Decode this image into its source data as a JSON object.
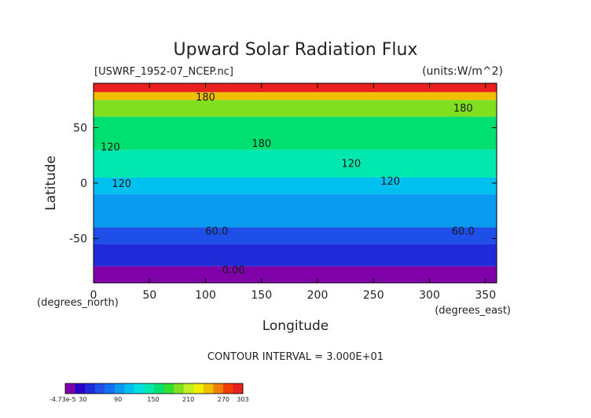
{
  "chart_data": {
    "type": "heatmap",
    "title": "Upward Solar Radiation Flux",
    "file_label": "[USWRF_1952-07_NCEP.nc]",
    "units_label": "(units:W/m^2)",
    "xlabel": "Longitude",
    "ylabel": "Latitude",
    "x_unit_label": "(degrees_east)",
    "y_unit_label": "(degrees_north)",
    "xlim": [
      0,
      360
    ],
    "ylim": [
      -90,
      90
    ],
    "x_ticks": [
      0,
      50,
      100,
      150,
      200,
      250,
      300,
      350
    ],
    "y_ticks": [
      -50,
      0,
      50
    ],
    "contour_interval_label": "CONTOUR INTERVAL = 3.000E+01",
    "contour_labels": [
      {
        "text": "180",
        "lon": 100,
        "lat": 78
      },
      {
        "text": "180",
        "lon": 150,
        "lat": 36
      },
      {
        "text": "180",
        "lon": 330,
        "lat": 68
      },
      {
        "text": "120",
        "lon": 15,
        "lat": 33
      },
      {
        "text": "120",
        "lon": 25,
        "lat": 0
      },
      {
        "text": "120",
        "lon": 230,
        "lat": 18
      },
      {
        "text": "120",
        "lon": 265,
        "lat": 2
      },
      {
        "text": "60.0",
        "lon": 110,
        "lat": -43
      },
      {
        "text": "60.0",
        "lon": 330,
        "lat": -43
      },
      {
        "text": "0.00",
        "lon": 125,
        "lat": -78
      }
    ],
    "latitude_bands": [
      {
        "lat_min": -90,
        "lat_max": -75,
        "value": 0
      },
      {
        "lat_min": -75,
        "lat_max": -55,
        "value": 40
      },
      {
        "lat_min": -55,
        "lat_max": -40,
        "value": 65
      },
      {
        "lat_min": -40,
        "lat_max": -10,
        "value": 100
      },
      {
        "lat_min": -10,
        "lat_max": 5,
        "value": 115
      },
      {
        "lat_min": 5,
        "lat_max": 30,
        "value": 140
      },
      {
        "lat_min": 30,
        "lat_max": 60,
        "value": 160
      },
      {
        "lat_min": 60,
        "lat_max": 75,
        "value": 200
      },
      {
        "lat_min": 75,
        "lat_max": 82,
        "value": 250
      },
      {
        "lat_min": 82,
        "lat_max": 90,
        "value": 290
      }
    ],
    "colorbar": {
      "min_label": "-4.73e-5",
      "tick_labels": [
        "30",
        "90",
        "150",
        "210",
        "270",
        "303"
      ],
      "tick_values": [
        30,
        90,
        150,
        210,
        270,
        303
      ],
      "min": 0,
      "max": 303,
      "colors": [
        "#7f00a8",
        "#2a00c8",
        "#1f2ad8",
        "#1e4fe8",
        "#1070f0",
        "#0a9af0",
        "#00c0f0",
        "#00e0e0",
        "#00e8b0",
        "#00e070",
        "#30e030",
        "#80e020",
        "#c0f020",
        "#f0f000",
        "#f0c000",
        "#f08000",
        "#f04000",
        "#e82020"
      ]
    }
  }
}
